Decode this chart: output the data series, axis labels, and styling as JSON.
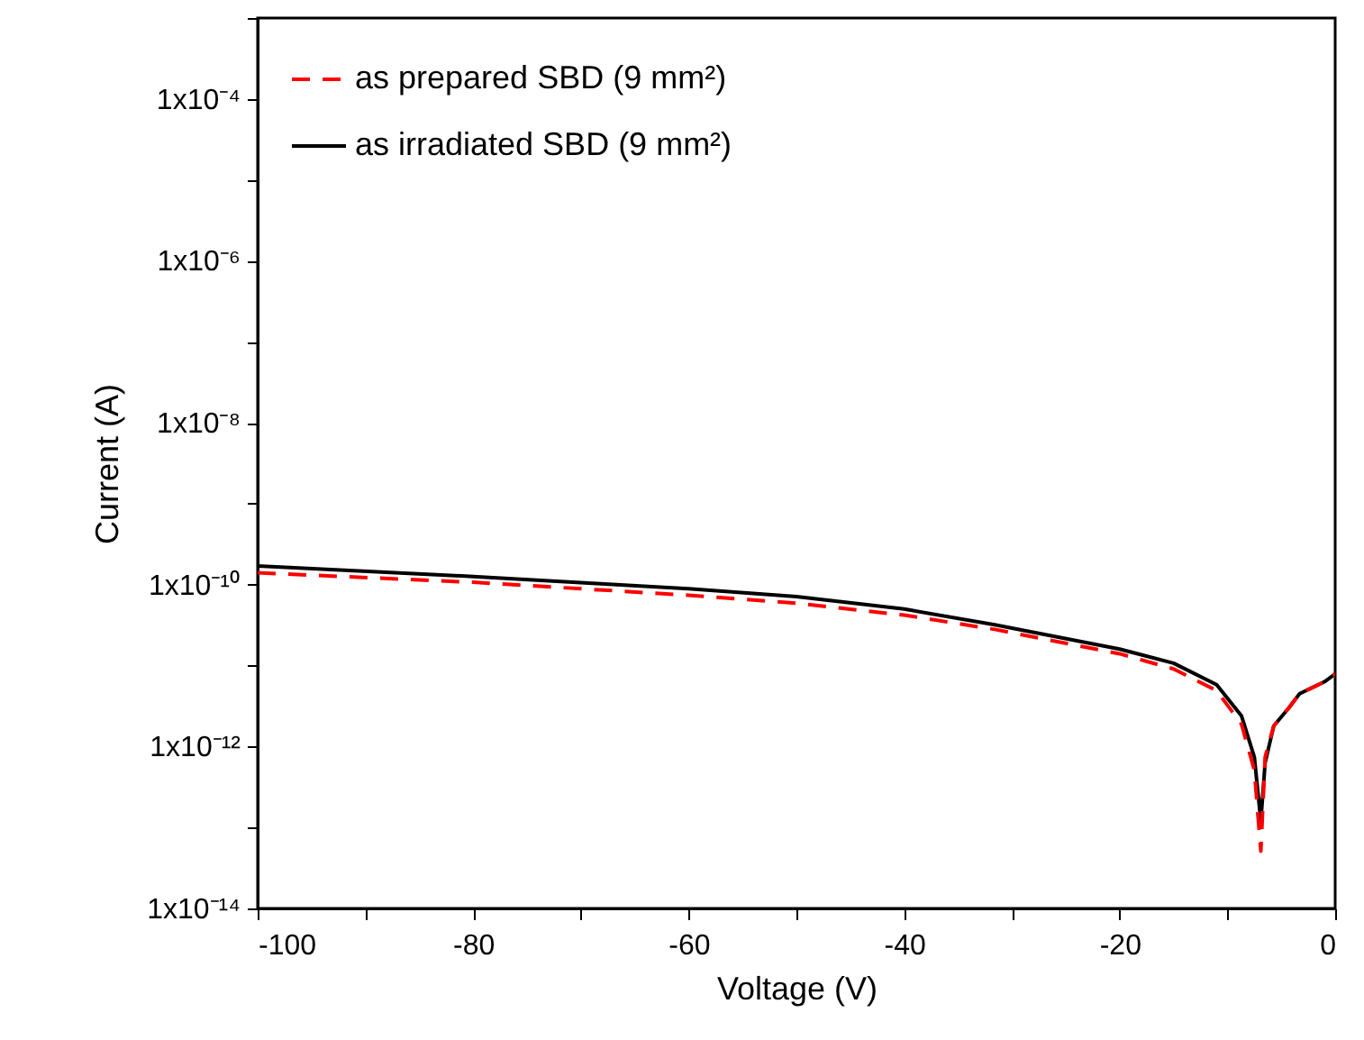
{
  "chart_data": {
    "type": "line",
    "xlabel": "Voltage (V)",
    "ylabel": "Current (A)",
    "log": "y",
    "legend": "top left",
    "grid": false,
    "xlim": [
      -100,
      0
    ],
    "xticks": [
      -100,
      {
        "value": -90,
        "label": null
      },
      -80,
      {
        "value": -70,
        "label": null
      },
      -60,
      {
        "value": -50,
        "label": null
      },
      -40,
      {
        "value": -30,
        "label": null
      },
      -20,
      {
        "value": -10,
        "label": null
      },
      0
    ],
    "ylim": [
      1e-14,
      0.001
    ],
    "yticks": [
      {
        "value": 1e-14,
        "label": "1x10⁻¹⁴"
      },
      {
        "value": 1e-13,
        "label": null
      },
      {
        "value": 1e-12,
        "label": "1x10⁻¹²"
      },
      {
        "value": 1e-11,
        "label": null
      },
      {
        "value": 1e-10,
        "label": "1x10⁻¹⁰"
      },
      {
        "value": 1e-09,
        "label": null
      },
      {
        "value": 1e-08,
        "label": "1x10⁻⁸"
      },
      {
        "value": 1e-07,
        "label": null
      },
      {
        "value": 1e-06,
        "label": "1x10⁻⁶"
      },
      {
        "value": 1e-05,
        "label": null
      },
      {
        "value": 0.0001,
        "label": "1x10⁻⁴"
      },
      {
        "value": 0.001,
        "label": null
      }
    ],
    "x": [
      -100,
      -80,
      -60,
      -50,
      -40,
      -31.6,
      -20,
      -15,
      -11,
      -8.7,
      -7.5,
      -6.9,
      -6.5,
      -5.7,
      -4.3,
      -3.3,
      -1,
      0
    ],
    "series": [
      {
        "name": "as prepared SBD (9 mm²)",
        "color": "#ff0000",
        "line_style": "dashed",
        "values": [
          1.4e-10,
          1.07e-10,
          7.4e-11,
          5.9e-11,
          4.2e-11,
          2.8e-11,
          1.4e-11,
          9.1e-12,
          4.9e-12,
          1.9e-12,
          5.1e-13,
          5.1e-14,
          7.4e-13,
          1.8e-12,
          3e-12,
          4.5e-12,
          6.3e-12,
          7.9e-12
        ]
      },
      {
        "name": "as irradiated SBD (9 mm²)",
        "color": "#000000",
        "line_style": "solid",
        "values": [
          1.7e-10,
          1.26e-10,
          8.9e-11,
          7.1e-11,
          5e-11,
          3.2e-11,
          1.6e-11,
          1.07e-11,
          5.8e-12,
          2.4e-12,
          7.4e-13,
          1.2e-13,
          6.3e-13,
          1.8e-12,
          3e-12,
          4.5e-12,
          6.3e-12,
          7.9e-12
        ]
      }
    ]
  }
}
